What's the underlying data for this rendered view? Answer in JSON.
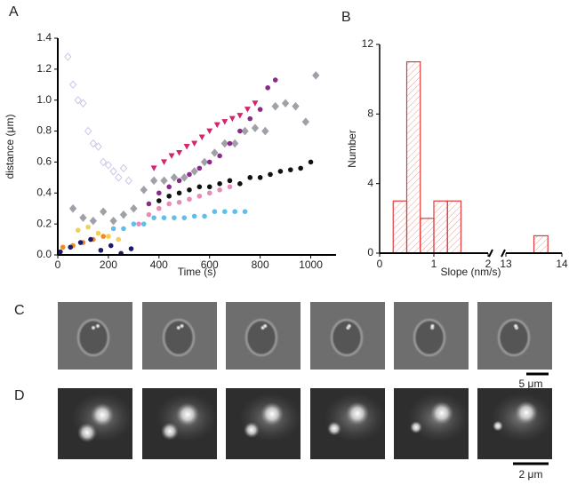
{
  "panel_labels": [
    "A",
    "B",
    "C",
    "D"
  ],
  "scale_bars": [
    "5 μm",
    "2 μm"
  ],
  "chart_data": [
    {
      "type": "scatter",
      "x_label": "Time (s)",
      "y_label": "distance (μm)",
      "xlim": [
        0,
        1100
      ],
      "ylim": [
        0,
        1.4
      ],
      "xticks": [
        0,
        200,
        400,
        600,
        800,
        1000
      ],
      "yticks": [
        {
          "value": 0,
          "label": "0.0"
        },
        0.2,
        0.4,
        0.6,
        0.8,
        {
          "value": 1,
          "label": "1.0"
        },
        1.2,
        1.4
      ],
      "series": [
        {
          "color": "#c8c8e8",
          "marker": "open-diamond",
          "x": [
            40,
            60,
            80,
            100,
            120,
            140,
            160,
            180,
            200,
            220,
            240,
            260,
            280
          ],
          "values": [
            1.28,
            1.1,
            1.0,
            0.98,
            0.8,
            0.72,
            0.7,
            0.6,
            0.58,
            0.54,
            0.5,
            0.56,
            0.48
          ]
        },
        {
          "color": "#a0a0a8",
          "marker": "diamond",
          "x": [
            60,
            100,
            140,
            180,
            220,
            260,
            300,
            340,
            380,
            420,
            460,
            500,
            540,
            580,
            620,
            660,
            700,
            740,
            780,
            820,
            860,
            900,
            940,
            980,
            1020
          ],
          "values": [
            0.3,
            0.24,
            0.22,
            0.28,
            0.22,
            0.26,
            0.3,
            0.42,
            0.48,
            0.48,
            0.5,
            0.5,
            0.54,
            0.6,
            0.66,
            0.72,
            0.72,
            0.8,
            0.82,
            0.8,
            0.96,
            0.98,
            0.96,
            0.86,
            1.16
          ]
        },
        {
          "color": "#5bc0eb",
          "marker": "circle",
          "x": [
            220,
            260,
            300,
            340,
            380,
            420,
            460,
            500,
            540,
            580,
            620,
            660,
            700,
            740
          ],
          "values": [
            0.17,
            0.17,
            0.2,
            0.2,
            0.24,
            0.24,
            0.24,
            0.24,
            0.25,
            0.25,
            0.28,
            0.28,
            0.28,
            0.28
          ]
        },
        {
          "color": "#e88bb8",
          "marker": "circle",
          "x": [
            320,
            360,
            400,
            440,
            480,
            520,
            560,
            600,
            640,
            680
          ],
          "values": [
            0.2,
            0.26,
            0.3,
            0.33,
            0.34,
            0.36,
            0.38,
            0.4,
            0.42,
            0.44
          ]
        },
        {
          "color": "#f2d24a",
          "marker": "circle",
          "x": [
            80,
            120,
            160,
            200,
            240
          ],
          "values": [
            0.16,
            0.18,
            0.14,
            0.12,
            0.1
          ]
        },
        {
          "color": "#f08a24",
          "marker": "circle",
          "x": [
            20,
            60,
            100,
            140,
            180
          ],
          "values": [
            0.05,
            0.06,
            0.08,
            0.1,
            0.12
          ]
        },
        {
          "color": "#1a1a6e",
          "marker": "circle",
          "x": [
            10,
            50,
            90,
            130,
            170,
            210,
            250,
            290
          ],
          "values": [
            0.02,
            0.05,
            0.08,
            0.1,
            0.03,
            0.06,
            0.01,
            0.04
          ]
        },
        {
          "color": "#111111",
          "marker": "circle",
          "x": [
            400,
            440,
            480,
            520,
            560,
            600,
            640,
            680,
            720,
            760,
            800,
            840,
            880,
            920,
            960,
            1000
          ],
          "values": [
            0.35,
            0.38,
            0.4,
            0.42,
            0.44,
            0.44,
            0.46,
            0.48,
            0.46,
            0.5,
            0.5,
            0.52,
            0.54,
            0.55,
            0.56,
            0.6
          ]
        },
        {
          "color": "#d4246e",
          "marker": "triangle",
          "x": [
            380,
            420,
            450,
            480,
            510,
            540,
            570,
            600,
            630,
            660,
            690,
            720,
            750,
            780
          ],
          "values": [
            0.56,
            0.6,
            0.64,
            0.66,
            0.7,
            0.72,
            0.76,
            0.8,
            0.84,
            0.86,
            0.88,
            0.9,
            0.94,
            0.98
          ]
        },
        {
          "color": "#8b2a8c",
          "marker": "circle",
          "x": [
            360,
            400,
            440,
            480,
            520,
            560,
            600,
            640,
            680,
            720,
            760,
            800,
            830,
            860
          ],
          "values": [
            0.33,
            0.4,
            0.44,
            0.48,
            0.52,
            0.56,
            0.6,
            0.64,
            0.72,
            0.8,
            0.88,
            0.94,
            1.08,
            1.13
          ]
        }
      ]
    },
    {
      "type": "histogram",
      "x_label": "Slope (nm/s)",
      "y_label": "Number",
      "bins": [
        0.25,
        0.5,
        0.75,
        1,
        1.25,
        1.5,
        13.5,
        13.75
      ],
      "values": [
        3,
        11,
        2,
        3,
        3,
        0,
        1
      ],
      "color": "#e03c3c",
      "hatch": true,
      "xlim": [
        0,
        14
      ],
      "x_break": [
        2,
        13
      ],
      "ylim": [
        0,
        12
      ],
      "xticks": [
        0,
        1,
        2,
        13,
        14
      ],
      "yticks": [
        0,
        4,
        8,
        12
      ]
    }
  ]
}
